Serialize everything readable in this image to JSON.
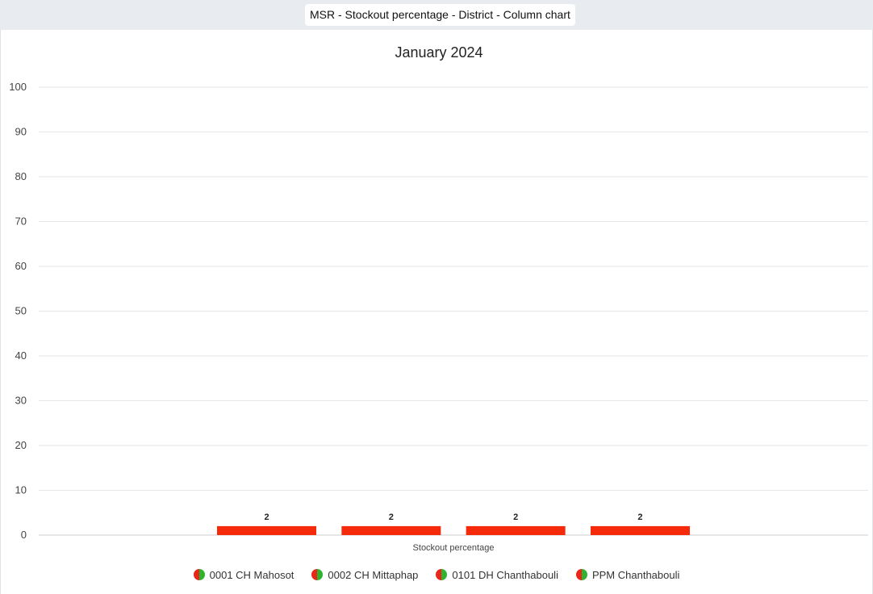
{
  "header": {
    "title": "MSR - Stockout percentage - District - Column chart"
  },
  "colors": {
    "bar": "#f52a0a",
    "legend_left": "#e8261a",
    "legend_right": "#2db32d",
    "grid": "#e6e6e6"
  },
  "chart_data": {
    "type": "bar",
    "title": "January 2024",
    "xlabel": "Stockout percentage",
    "ylabel": "",
    "ylim": [
      0,
      100
    ],
    "yticks": [
      0,
      10,
      20,
      30,
      40,
      50,
      60,
      70,
      80,
      90,
      100
    ],
    "categories": [
      "Stockout percentage"
    ],
    "series": [
      {
        "name": "0001 CH Mahosot",
        "values": [
          2
        ]
      },
      {
        "name": "0002 CH Mittaphap",
        "values": [
          2
        ]
      },
      {
        "name": "0101 DH Chanthabouli",
        "values": [
          2
        ]
      },
      {
        "name": "PPM Chanthabouli",
        "values": [
          2
        ]
      }
    ],
    "legend_position": "bottom-center"
  }
}
